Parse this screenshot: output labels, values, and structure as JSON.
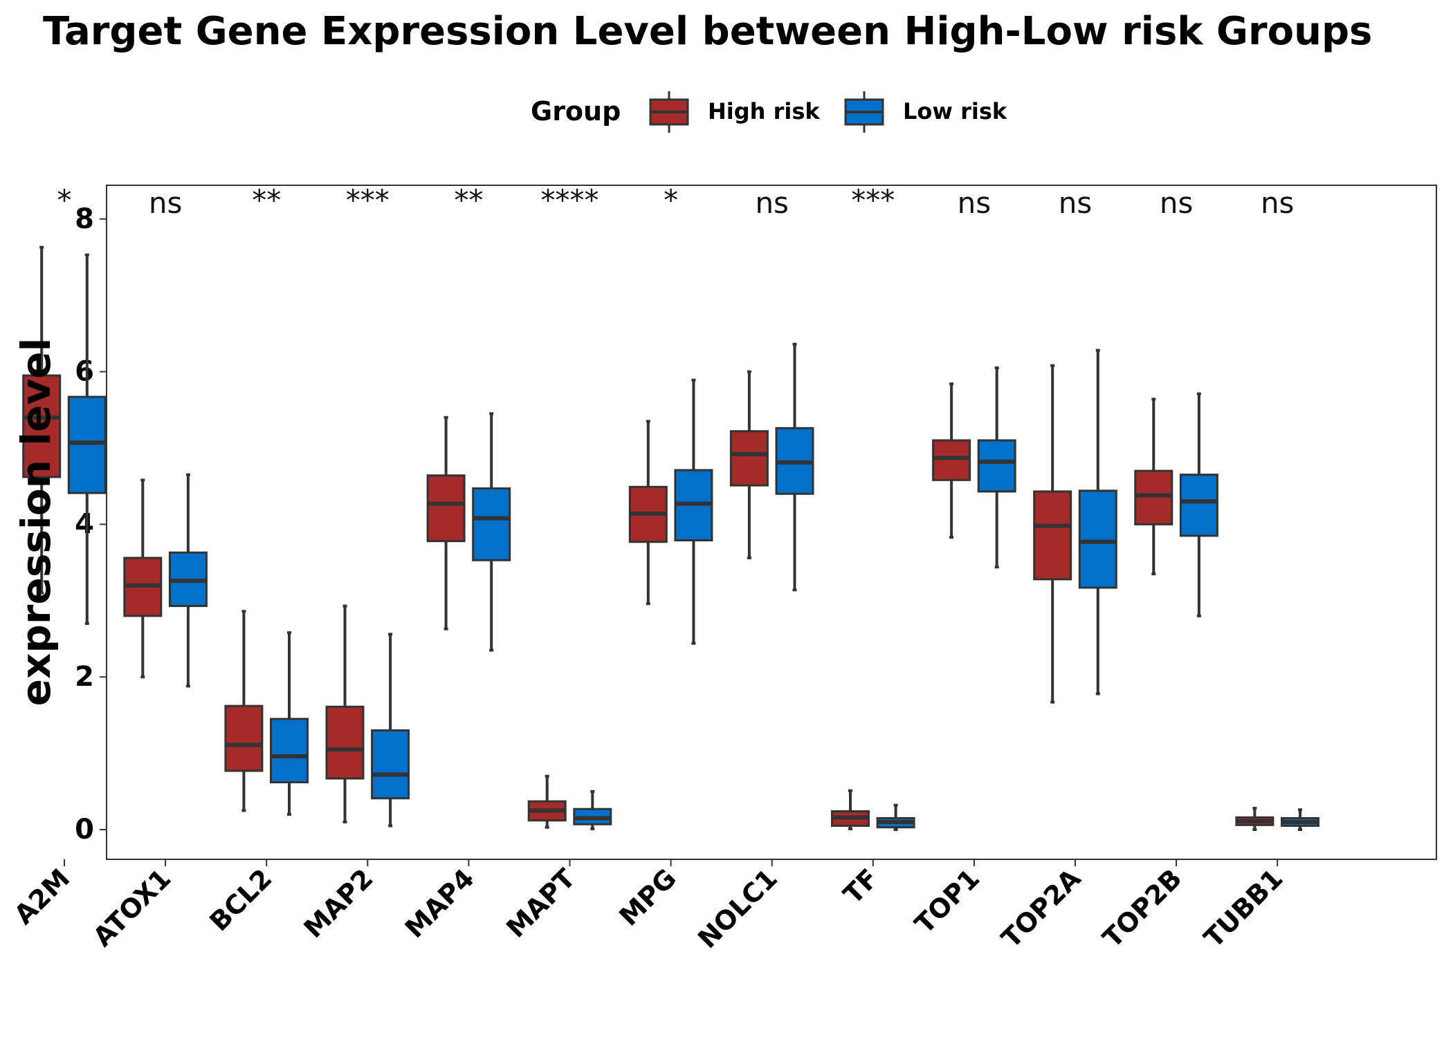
{
  "chart_data": {
    "type": "boxplot",
    "title": "Target Gene Expression Level between High-Low risk Groups",
    "ylabel": "expression level",
    "xlabel": "",
    "ylim": [
      -0.4,
      8.4
    ],
    "yticks": [
      0,
      2,
      4,
      6,
      8
    ],
    "grid": false,
    "legend": {
      "title": "Group",
      "position": "top",
      "entries": [
        "High risk",
        "Low risk"
      ]
    },
    "categories": [
      "A2M",
      "ATOX1",
      "BCL2",
      "MAP2",
      "MAP4",
      "MAPT",
      "MPG",
      "NOLC1",
      "TF",
      "TOP1",
      "TOP2A",
      "TOP2B",
      "TUBB1"
    ],
    "significance": [
      "*",
      "ns",
      "**",
      "***",
      "**",
      "****",
      "*",
      "ns",
      "***",
      "ns",
      "ns",
      "ns",
      "ns"
    ],
    "series": [
      {
        "name": "High risk",
        "color": "#a52a2a",
        "boxes": [
          {
            "min": 3.1,
            "q1": 4.62,
            "median": 5.4,
            "q3": 5.95,
            "max": 7.63
          },
          {
            "min": 2.0,
            "q1": 2.8,
            "median": 3.2,
            "q3": 3.56,
            "max": 4.58
          },
          {
            "min": 0.25,
            "q1": 0.77,
            "median": 1.11,
            "q3": 1.62,
            "max": 2.86
          },
          {
            "min": 0.1,
            "q1": 0.67,
            "median": 1.05,
            "q3": 1.61,
            "max": 2.93
          },
          {
            "min": 2.63,
            "q1": 3.78,
            "median": 4.27,
            "q3": 4.64,
            "max": 5.4
          },
          {
            "min": 0.03,
            "q1": 0.12,
            "median": 0.25,
            "q3": 0.37,
            "max": 0.7
          },
          {
            "min": 2.96,
            "q1": 3.77,
            "median": 4.14,
            "q3": 4.49,
            "max": 5.35
          },
          {
            "min": 3.56,
            "q1": 4.51,
            "median": 4.92,
            "q3": 5.22,
            "max": 6.0
          },
          {
            "min": 0.01,
            "q1": 0.05,
            "median": 0.16,
            "q3": 0.24,
            "max": 0.51
          },
          {
            "min": 3.83,
            "q1": 4.58,
            "median": 4.87,
            "q3": 5.1,
            "max": 5.84
          },
          {
            "min": 1.67,
            "q1": 3.28,
            "median": 3.98,
            "q3": 4.43,
            "max": 6.08
          },
          {
            "min": 3.35,
            "q1": 4.0,
            "median": 4.38,
            "q3": 4.7,
            "max": 5.64
          },
          {
            "min": 0.0,
            "q1": 0.06,
            "median": 0.11,
            "q3": 0.16,
            "max": 0.28
          }
        ]
      },
      {
        "name": "Low risk",
        "color": "#0070c8",
        "boxes": [
          {
            "min": 2.7,
            "q1": 4.41,
            "median": 5.07,
            "q3": 5.67,
            "max": 7.53
          },
          {
            "min": 1.88,
            "q1": 2.93,
            "median": 3.26,
            "q3": 3.63,
            "max": 4.65
          },
          {
            "min": 0.2,
            "q1": 0.62,
            "median": 0.96,
            "q3": 1.45,
            "max": 2.58
          },
          {
            "min": 0.05,
            "q1": 0.41,
            "median": 0.72,
            "q3": 1.3,
            "max": 2.56
          },
          {
            "min": 2.35,
            "q1": 3.53,
            "median": 4.08,
            "q3": 4.47,
            "max": 5.45
          },
          {
            "min": 0.01,
            "q1": 0.07,
            "median": 0.15,
            "q3": 0.27,
            "max": 0.5
          },
          {
            "min": 2.44,
            "q1": 3.79,
            "median": 4.27,
            "q3": 4.71,
            "max": 5.89
          },
          {
            "min": 3.14,
            "q1": 4.4,
            "median": 4.81,
            "q3": 5.26,
            "max": 6.36
          },
          {
            "min": 0.0,
            "q1": 0.03,
            "median": 0.1,
            "q3": 0.15,
            "max": 0.32
          },
          {
            "min": 3.44,
            "q1": 4.43,
            "median": 4.82,
            "q3": 5.1,
            "max": 6.05
          },
          {
            "min": 1.78,
            "q1": 3.17,
            "median": 3.77,
            "q3": 4.44,
            "max": 6.28
          },
          {
            "min": 2.8,
            "q1": 3.85,
            "median": 4.3,
            "q3": 4.65,
            "max": 5.71
          },
          {
            "min": 0.0,
            "q1": 0.05,
            "median": 0.1,
            "q3": 0.15,
            "max": 0.26
          }
        ]
      }
    ]
  }
}
